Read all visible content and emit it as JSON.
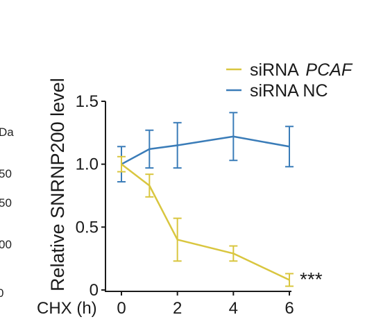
{
  "chart_data": {
    "type": "line",
    "ylabel": "Relative SNRNP200  level",
    "x_axis_label": "CHX (h)",
    "x": [
      0,
      1,
      2,
      4,
      6
    ],
    "x_ticks": [
      "0",
      "2",
      "4",
      "6"
    ],
    "y_ticks": [
      "0",
      "0.5",
      "1.0",
      "1.5"
    ],
    "ylim": [
      0,
      1.5
    ],
    "xlim": [
      0,
      6
    ],
    "grid": false,
    "legend_position": "top-right",
    "significance_label": "***",
    "series": [
      {
        "name_prefix": "siRNA",
        "name_italic": "PCAF",
        "color": "#d9c63f",
        "values": [
          1.0,
          0.83,
          0.4,
          0.29,
          0.08
        ],
        "errors": [
          0.06,
          0.09,
          0.17,
          0.06,
          0.05
        ]
      },
      {
        "name_prefix": "siRNA NC",
        "name_italic": "",
        "color": "#3a7cb8",
        "values": [
          1.0,
          1.12,
          1.15,
          1.22,
          1.14
        ],
        "errors": [
          0.14,
          0.15,
          0.18,
          0.19,
          0.16
        ]
      }
    ]
  },
  "left_edge_labels": [
    "Da",
    "50",
    "50",
    "00",
    "0"
  ]
}
